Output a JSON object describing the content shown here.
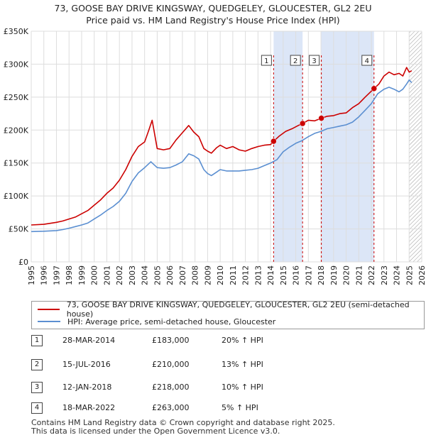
{
  "title_line1": "73, GOOSE BAY DRIVE KINGSWAY, QUEDGELEY, GLOUCESTER, GL2 2EU",
  "title_line2": "Price paid vs. HM Land Registry's House Price Index (HPI)",
  "colors": {
    "property": "#cc0000",
    "hpi": "#5b8fd1",
    "shade": "#dce6f7",
    "grid": "#dddddd",
    "sale_line": "#cc0000"
  },
  "legend": {
    "property_label": "73, GOOSE BAY DRIVE KINGSWAY, QUEDGELEY, GLOUCESTER, GL2 2EU (semi-detached house)",
    "hpi_label": "HPI: Average price, semi-detached house, Gloucester"
  },
  "sales": [
    {
      "num": "1",
      "date": "28-MAR-2014",
      "price": "£183,000",
      "hpi": "20% ↑ HPI"
    },
    {
      "num": "2",
      "date": "15-JUL-2016",
      "price": "£210,000",
      "hpi": "13% ↑ HPI"
    },
    {
      "num": "3",
      "date": "12-JAN-2018",
      "price": "£218,000",
      "hpi": "10% ↑ HPI"
    },
    {
      "num": "4",
      "date": "18-MAR-2022",
      "price": "£263,000",
      "hpi": "5% ↑ HPI"
    }
  ],
  "footer_line1": "Contains HM Land Registry data © Crown copyright and database right 2025.",
  "footer_line2": "This data is licensed under the Open Government Licence v3.0.",
  "chart_data": {
    "type": "line",
    "title": "73, GOOSE BAY DRIVE KINGSWAY, QUEDGELEY, GLOUCESTER, GL2 2EU — Price paid vs. HM Land Registry's House Price Index (HPI)",
    "xlim": [
      1995,
      2026
    ],
    "ylim": [
      0,
      350000
    ],
    "x_ticks": [
      1995,
      1996,
      1997,
      1998,
      1999,
      2000,
      2001,
      2002,
      2003,
      2004,
      2005,
      2006,
      2007,
      2008,
      2009,
      2010,
      2011,
      2012,
      2013,
      2014,
      2015,
      2016,
      2017,
      2018,
      2019,
      2020,
      2021,
      2022,
      2023,
      2024,
      2025,
      2026
    ],
    "y_ticks": [
      0,
      50000,
      100000,
      150000,
      200000,
      250000,
      300000,
      350000
    ],
    "y_tick_labels": [
      "£0",
      "£50K",
      "£100K",
      "£150K",
      "£200K",
      "£250K",
      "£300K",
      "£350K"
    ],
    "future_hatch_from": 2025.0,
    "shaded_ranges": [
      [
        2014.24,
        2016.54
      ],
      [
        2018.03,
        2022.21
      ]
    ],
    "series": [
      {
        "name": "73, GOOSE BAY DRIVE KINGSWAY, QUEDGELEY, GLOUCESTER, GL2 2EU (semi-detached house)",
        "x": [
          1995.0,
          1996.0,
          1997.0,
          1997.5,
          1998.0,
          1998.5,
          1999.0,
          1999.5,
          2000.0,
          2000.5,
          2001.0,
          2001.5,
          2002.0,
          2002.5,
          2003.0,
          2003.5,
          2004.0,
          2004.3,
          2004.6,
          2005.0,
          2005.5,
          2006.0,
          2006.5,
          2007.0,
          2007.5,
          2007.9,
          2008.3,
          2008.7,
          2009.0,
          2009.3,
          2009.7,
          2010.0,
          2010.5,
          2011.0,
          2011.5,
          2012.0,
          2012.5,
          2013.0,
          2013.5,
          2014.0,
          2014.24,
          2014.7,
          2015.2,
          2015.7,
          2016.2,
          2016.54,
          2017.0,
          2017.5,
          2018.03,
          2018.5,
          2019.0,
          2019.5,
          2020.0,
          2020.5,
          2021.0,
          2021.5,
          2022.21,
          2022.6,
          2023.0,
          2023.4,
          2023.8,
          2024.2,
          2024.5,
          2024.8,
          2025.0,
          2025.2
        ],
        "values": [
          56000,
          57000,
          60000,
          62000,
          65000,
          68000,
          73000,
          78000,
          86000,
          94000,
          104000,
          112000,
          124000,
          140000,
          160000,
          175000,
          182000,
          198000,
          215000,
          172000,
          170000,
          172000,
          185000,
          196000,
          207000,
          197000,
          190000,
          172000,
          168000,
          165000,
          173000,
          177000,
          172000,
          175000,
          170000,
          168000,
          172000,
          175000,
          177000,
          178000,
          183000,
          191000,
          198000,
          202000,
          207000,
          210000,
          215000,
          214000,
          218000,
          221000,
          222000,
          225000,
          226000,
          234000,
          240000,
          250000,
          263000,
          270000,
          282000,
          288000,
          284000,
          286000,
          282000,
          295000,
          288000,
          290000
        ]
      },
      {
        "name": "HPI: Average price, semi-detached house, Gloucester",
        "x": [
          1995.0,
          1996.0,
          1997.0,
          1997.5,
          1998.0,
          1998.5,
          1999.0,
          1999.5,
          2000.0,
          2000.5,
          2001.0,
          2001.5,
          2002.0,
          2002.5,
          2003.0,
          2003.5,
          2004.0,
          2004.5,
          2005.0,
          2005.5,
          2006.0,
          2006.5,
          2007.0,
          2007.5,
          2007.9,
          2008.3,
          2008.7,
          2009.0,
          2009.3,
          2009.7,
          2010.0,
          2010.5,
          2011.0,
          2011.5,
          2012.0,
          2012.5,
          2013.0,
          2013.5,
          2014.0,
          2014.5,
          2015.0,
          2015.5,
          2016.0,
          2016.5,
          2017.0,
          2017.5,
          2018.0,
          2018.5,
          2019.0,
          2019.5,
          2020.0,
          2020.5,
          2021.0,
          2021.5,
          2022.0,
          2022.5,
          2023.0,
          2023.4,
          2023.8,
          2024.2,
          2024.5,
          2024.8,
          2025.0,
          2025.2
        ],
        "values": [
          46000,
          46500,
          47500,
          49000,
          51000,
          53500,
          56000,
          59000,
          65000,
          71000,
          78000,
          84000,
          92000,
          104000,
          122000,
          135000,
          143000,
          152000,
          143000,
          142000,
          143000,
          147000,
          152000,
          164000,
          161000,
          156000,
          140000,
          134000,
          131000,
          136000,
          140000,
          138000,
          138000,
          138000,
          139000,
          140000,
          142000,
          146000,
          150000,
          155000,
          167000,
          174000,
          180000,
          184000,
          190000,
          195000,
          198000,
          202000,
          204000,
          206000,
          208000,
          212000,
          220000,
          230000,
          240000,
          255000,
          262000,
          265000,
          262000,
          258000,
          262000,
          270000,
          276000,
          272000
        ]
      }
    ],
    "sale_markers": [
      {
        "label": "1",
        "x": 2014.24,
        "y": 183000
      },
      {
        "label": "2",
        "x": 2016.54,
        "y": 210000
      },
      {
        "label": "3",
        "x": 2018.03,
        "y": 218000
      },
      {
        "label": "4",
        "x": 2022.21,
        "y": 263000
      }
    ]
  }
}
